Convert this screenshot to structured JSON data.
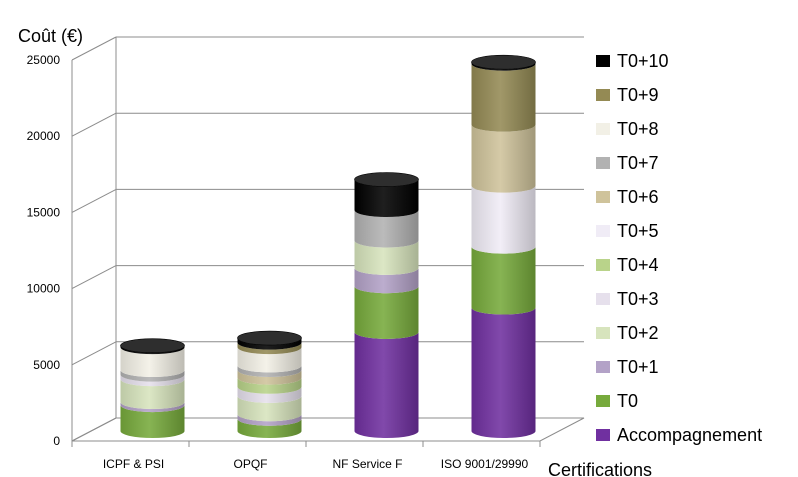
{
  "chart_data": {
    "type": "bar",
    "subtype": "stacked-3d-cylinder",
    "ylabel": "Coût (€)",
    "xlabel": "Certifications",
    "ylim": [
      0,
      25000
    ],
    "yticks": [
      0,
      5000,
      10000,
      15000,
      20000,
      25000
    ],
    "grid": true,
    "legend_position": "right",
    "categories": [
      "ICPF & PSI",
      "OPQF",
      "NF Service F",
      "ISO 9001/29990"
    ],
    "series": [
      {
        "name": "Accompagnement",
        "color": "#7030A0",
        "values": [
          0,
          0,
          6500,
          8100
        ]
      },
      {
        "name": "T0",
        "color": "#77AA3C",
        "values": [
          1700,
          800,
          3000,
          4000
        ]
      },
      {
        "name": "T0+1",
        "color": "#B3A2C7",
        "values": [
          200,
          300,
          1200,
          0
        ]
      },
      {
        "name": "T0+2",
        "color": "#D7E4BD",
        "values": [
          1500,
          1200,
          1800,
          0
        ]
      },
      {
        "name": "T0+3",
        "color": "#E6E0EC",
        "values": [
          300,
          600,
          0,
          0
        ]
      },
      {
        "name": "T0+4",
        "color": "#B9D38A",
        "values": [
          0,
          600,
          0,
          0
        ]
      },
      {
        "name": "T0+5",
        "color": "#F0ECF6",
        "values": [
          0,
          0,
          0,
          4000
        ]
      },
      {
        "name": "T0+6",
        "color": "#CFC39B",
        "values": [
          0,
          500,
          0,
          4000
        ]
      },
      {
        "name": "T0+7",
        "color": "#B2B2B2",
        "values": [
          300,
          300,
          2000,
          0
        ]
      },
      {
        "name": "T0+8",
        "color": "#F2F0E6",
        "values": [
          1500,
          1200,
          0,
          0
        ]
      },
      {
        "name": "T0+9",
        "color": "#948A54",
        "values": [
          0,
          300,
          0,
          4000
        ]
      },
      {
        "name": "T0+10",
        "color": "#000000",
        "values": [
          100,
          300,
          2000,
          100
        ]
      }
    ]
  }
}
